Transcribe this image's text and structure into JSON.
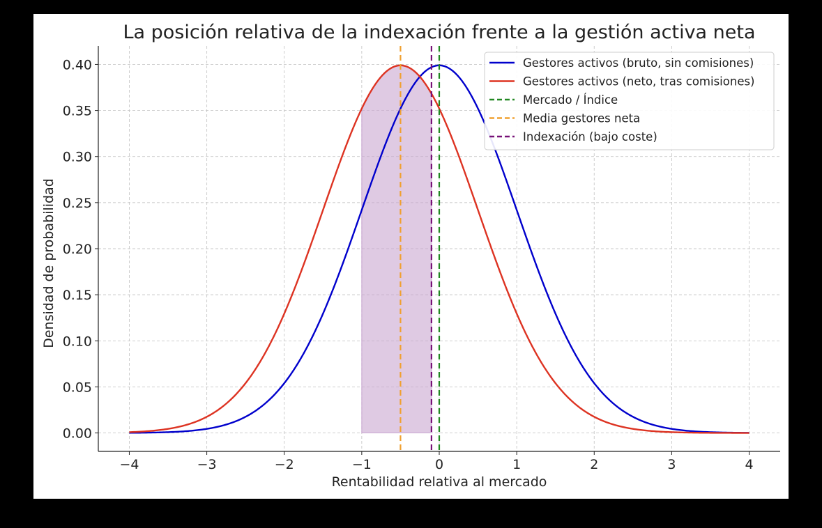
{
  "chart_data": {
    "type": "line",
    "title": "La posición relativa de la indexación frente a la gestión activa neta",
    "xlabel": "Rentabilidad relativa al mercado",
    "ylabel": "Densidad de probabilidad",
    "xlim": [
      -4.4,
      4.4
    ],
    "ylim": [
      -0.02,
      0.42
    ],
    "x_ticks": [
      -4,
      -3,
      -2,
      -1,
      0,
      1,
      2,
      3,
      4
    ],
    "x_tick_labels": [
      "−4",
      "−3",
      "−2",
      "−1",
      "0",
      "1",
      "2",
      "3",
      "4"
    ],
    "y_ticks": [
      0.0,
      0.05,
      0.1,
      0.15,
      0.2,
      0.25,
      0.3,
      0.35,
      0.4
    ],
    "y_tick_labels": [
      "0.00",
      "0.05",
      "0.10",
      "0.15",
      "0.20",
      "0.25",
      "0.30",
      "0.35",
      "0.40"
    ],
    "grid": true,
    "legend_position": "top-right",
    "series": [
      {
        "name": "Gestores activos (bruto, sin comisiones)",
        "kind": "normal_pdf",
        "mean": 0.0,
        "sd": 1.0,
        "x_range": [
          -4,
          4
        ],
        "color": "#0000cc",
        "style": "solid"
      },
      {
        "name": "Gestores activos (neto, tras comisiones)",
        "kind": "normal_pdf",
        "mean": -0.5,
        "sd": 1.0,
        "x_range": [
          -4,
          4
        ],
        "color": "#dd3322",
        "style": "solid"
      },
      {
        "name": "Mercado / Índice",
        "kind": "vline",
        "x": 0.0,
        "color": "#228822",
        "style": "dashed"
      },
      {
        "name": "Media gestores neta",
        "kind": "vline",
        "x": -0.5,
        "color": "#f0a030",
        "style": "dashed"
      },
      {
        "name": "Indexación (bajo coste)",
        "kind": "vline",
        "x": -0.1,
        "color": "#771177",
        "style": "dashed"
      }
    ],
    "shaded_region": {
      "x_from": -1.0,
      "x_to": -0.1,
      "under_series": "Gestores activos (neto, tras comisiones)",
      "color": "#c9a6d1"
    }
  }
}
